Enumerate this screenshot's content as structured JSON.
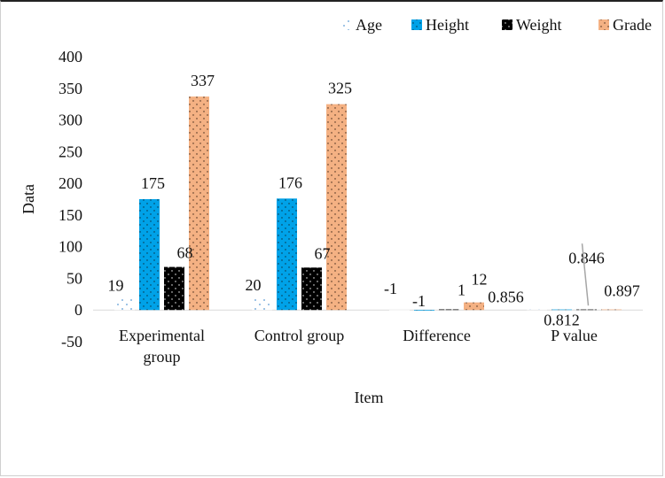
{
  "chart_data": {
    "type": "bar",
    "title": "",
    "xlabel": "Item",
    "ylabel": "Data",
    "ylim": [
      -50,
      400
    ],
    "yticks": [
      -50,
      0,
      50,
      100,
      150,
      200,
      250,
      300,
      350,
      400
    ],
    "grid": false,
    "legend_position": "top-right",
    "categories": [
      "Experimental group",
      "Control group",
      "Difference",
      "P value"
    ],
    "series": [
      {
        "name": "Age",
        "color": "#5B9BD5",
        "pattern": "dots-sparse",
        "values": [
          19,
          20,
          -1,
          0.856
        ]
      },
      {
        "name": "Height",
        "color": "#00A2E8",
        "pattern": "dots",
        "values": [
          175,
          176,
          -1,
          0.812
        ]
      },
      {
        "name": "Weight",
        "color": "#000000",
        "pattern": "dots-light",
        "values": [
          68,
          67,
          1,
          0.846
        ]
      },
      {
        "name": "Grade",
        "color": "#F4B183",
        "pattern": "dots",
        "values": [
          337,
          325,
          12,
          0.897
        ]
      }
    ]
  }
}
